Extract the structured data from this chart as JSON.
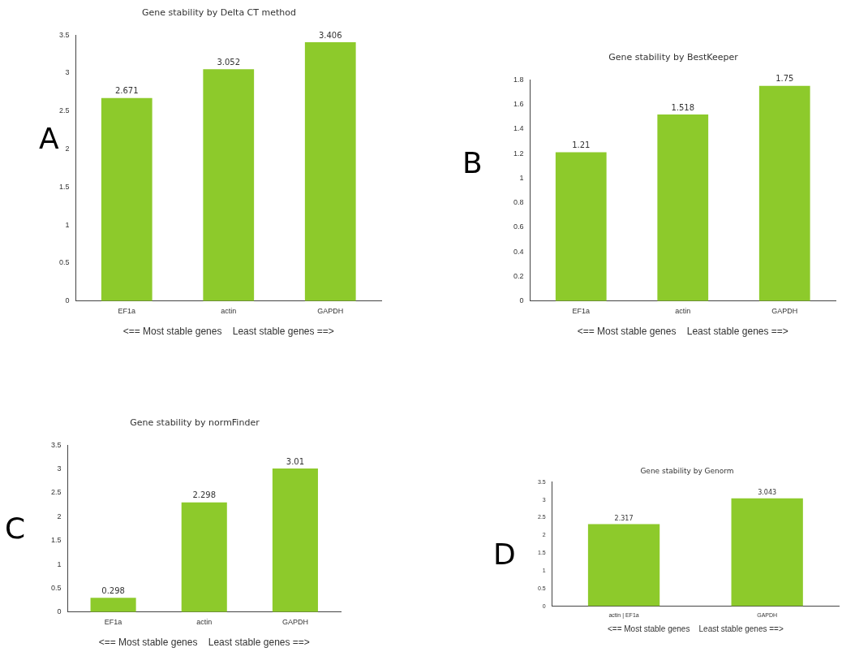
{
  "chart_data": [
    {
      "type": "bar",
      "title": "Gene stability by Delta CT method",
      "categories": [
        "EF1a",
        "actin",
        "GAPDH"
      ],
      "values": [
        2.671,
        3.052,
        3.406
      ],
      "color": "#8dca2b",
      "ylim": [
        0,
        3.5
      ],
      "yticks": [
        0,
        0.5,
        1,
        1.5,
        2,
        2.5,
        3,
        3.5
      ],
      "xlabel": "<== Most stable genes    Least stable genes ==>",
      "data_labels": true,
      "grid": false,
      "annotations": [
        "A"
      ]
    },
    {
      "type": "bar",
      "title": "Gene stability by BestKeeper",
      "categories": [
        "EF1a",
        "actin",
        "GAPDH"
      ],
      "values": [
        1.21,
        1.518,
        1.75
      ],
      "color": "#8dca2b",
      "ylim": [
        0,
        1.8
      ],
      "yticks": [
        0,
        0.2,
        0.4,
        0.6,
        0.8,
        1,
        1.2,
        1.4,
        1.6,
        1.8
      ],
      "xlabel": "<== Most stable genes    Least stable genes ==>",
      "data_labels": true,
      "grid": false,
      "annotations": [
        "B"
      ]
    },
    {
      "type": "bar",
      "title": "Gene stability by normFinder",
      "categories": [
        "EF1a",
        "actin",
        "GAPDH"
      ],
      "values": [
        0.298,
        2.298,
        3.01
      ],
      "color": "#8dca2b",
      "ylim": [
        0,
        3.5
      ],
      "yticks": [
        0,
        0.5,
        1,
        1.5,
        2,
        2.5,
        3,
        3.5
      ],
      "xlabel": "<== Most stable genes    Least stable genes ==>",
      "data_labels": true,
      "grid": false,
      "annotations": [
        "C"
      ]
    },
    {
      "type": "bar",
      "title": "Gene stability by Genorm",
      "categories": [
        "actin | EF1a",
        "GAPDH"
      ],
      "values": [
        2.317,
        3.043
      ],
      "color": "#8dca2b",
      "ylim": [
        0,
        3.5
      ],
      "yticks": [
        0,
        0.5,
        1,
        1.5,
        2,
        2.5,
        3,
        3.5
      ],
      "xlabel": "<== Most stable genes    Least stable genes ==>",
      "data_labels": true,
      "grid": false,
      "annotations": [
        "D"
      ]
    }
  ]
}
